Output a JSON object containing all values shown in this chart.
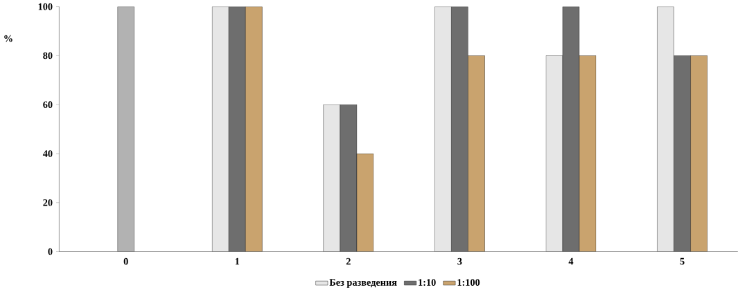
{
  "chart_data": {
    "type": "bar",
    "ylabel": "%",
    "categories": [
      "0",
      "1",
      "2",
      "3",
      "4",
      "5"
    ],
    "series": [
      {
        "color": "#b2b2b2",
        "values": [
          100,
          null,
          null,
          null,
          null,
          null
        ]
      },
      {
        "name": "Без разведения",
        "color": "#e6e6e6",
        "values": [
          null,
          100,
          60,
          100,
          80,
          100
        ]
      },
      {
        "name": "1:10",
        "color": "#6e6e6e",
        "values": [
          null,
          100,
          60,
          100,
          100,
          80
        ]
      },
      {
        "name": "1:100",
        "color": "#c9a36e",
        "values": [
          null,
          100,
          40,
          80,
          80,
          80
        ]
      }
    ],
    "ylim": [
      0,
      100
    ],
    "yticks": [
      0,
      20,
      40,
      60,
      80,
      100
    ],
    "grid": false,
    "legend": "bottom"
  }
}
